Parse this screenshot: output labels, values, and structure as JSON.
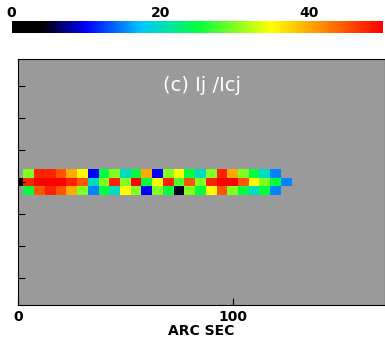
{
  "chart_data": {
    "type": "heatmap",
    "title": "(c) Ij /Icj",
    "x_label": "ARC SEC",
    "x": [
      0,
      5,
      10,
      15,
      20,
      25,
      30,
      35,
      40,
      45,
      50,
      55,
      60,
      65,
      70,
      75,
      80,
      85,
      90,
      95,
      100,
      105,
      110,
      115,
      120,
      125
    ],
    "y": [
      -4,
      0,
      4
    ],
    "cells": [
      [
        null,
        25,
        45,
        48,
        45,
        40,
        30,
        15,
        25,
        20,
        35,
        30,
        10,
        30,
        25,
        5,
        30,
        25,
        35,
        45,
        30,
        25,
        20,
        25,
        15,
        null
      ],
      [
        0,
        48,
        50,
        50,
        50,
        48,
        45,
        20,
        30,
        48,
        30,
        50,
        25,
        35,
        48,
        28,
        45,
        30,
        48,
        50,
        50,
        45,
        35,
        30,
        25,
        15
      ],
      [
        null,
        30,
        48,
        48,
        45,
        40,
        35,
        10,
        25,
        30,
        20,
        25,
        40,
        10,
        30,
        35,
        25,
        20,
        30,
        48,
        40,
        30,
        25,
        20,
        15,
        null
      ]
    ],
    "xlim": [
      0,
      171
    ],
    "xticks": [
      0,
      100
    ],
    "ylim": [
      -58,
      58
    ],
    "yticks": [
      -45,
      -30,
      -15,
      0,
      15,
      30,
      45
    ],
    "tick_labels": "x",
    "colorbar_range": [
      0,
      50
    ],
    "colorbar_ticks": [
      0,
      20,
      40
    ]
  }
}
